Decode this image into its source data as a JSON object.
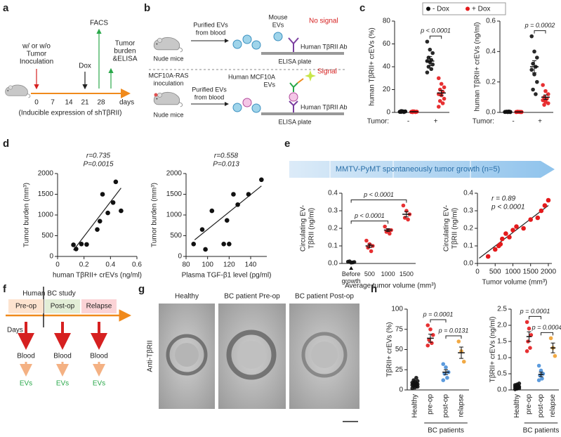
{
  "panel_labels": [
    "a",
    "b",
    "c",
    "d",
    "e",
    "f",
    "g",
    "h"
  ],
  "diagram_a": {
    "inoculation": [
      "w/ or w/o",
      "Tumor",
      "Inoculation"
    ],
    "facs": "FACS",
    "tumor_burden": [
      "Tumor",
      "burden",
      "&ELISA"
    ],
    "dox": "Dox",
    "days": [
      "0",
      "7",
      "14",
      "21",
      "28"
    ],
    "days_unit": "days",
    "caption": "(Inducible expression of shTβRII)"
  },
  "diagram_b": {
    "top": {
      "mouse_evs": [
        "Mouse",
        "EVs"
      ],
      "result": "No signal",
      "purified": [
        "Purified EVs",
        "from blood"
      ],
      "antibody": "Human TβRII Ab",
      "mice": "Nude mice",
      "plate": "ELISA plate"
    },
    "bottom": {
      "inoculation": [
        "MCF10A-RAS",
        "inoculation"
      ],
      "result": "Signal",
      "human_evs": [
        "Human MCF10A",
        "EVs"
      ],
      "purified": [
        "Purified EVs",
        "from blood"
      ],
      "antibody": "Human TβRII Ab",
      "mice": "Nude mice",
      "plate": "ELISA plate"
    }
  },
  "panel_e": {
    "banner": "MMTV-PyMT spontaneously tumor growth (n=5)"
  },
  "diagram_f": {
    "title": "Human BC study",
    "phases": [
      "Pre-op",
      "Post-op",
      "Relapse"
    ],
    "days": "Days",
    "sample": [
      "Blood",
      "Blood",
      "Blood"
    ],
    "product": [
      "EVs",
      "EVs",
      "EVs"
    ]
  },
  "images_g": {
    "stain": "Anti-TβRII",
    "labels": [
      "Healthy",
      "BC patient Pre-op",
      "BC patient Post-op"
    ]
  },
  "chart_data": [
    {
      "type": "strip",
      "ylabel": [
        "human TβRII+ crEVs (%)"
      ],
      "category_title": "Tumor:",
      "categories": [
        "-",
        "+"
      ],
      "ylim": [
        0,
        80
      ],
      "yticks": [
        0,
        20,
        40,
        60,
        80
      ],
      "series": [
        {
          "name": "- Dox",
          "color": "#111111",
          "values": [
            [
              0.5,
              1,
              0.8,
              1.2,
              0.3,
              0.6,
              1,
              0.9,
              0.4,
              0.7
            ],
            [
              62,
              55,
              52,
              48,
              46,
              45,
              44,
              42,
              40,
              38,
              35
            ]
          ],
          "means": [
            0.7,
            45
          ],
          "errors": [
            0.1,
            4
          ]
        },
        {
          "name": "+ Dox",
          "color": "#e41a1c",
          "values": [
            [
              0.4,
              0.8,
              0.6,
              1,
              0.3,
              0.5,
              0.9,
              0.7,
              0.2,
              0.6
            ],
            [
              30,
              25,
              22,
              20,
              18,
              16,
              15,
              12,
              10,
              8,
              5
            ]
          ],
          "means": [
            0.6,
            17
          ],
          "errors": [
            0.1,
            2.3
          ]
        }
      ],
      "brackets": [
        {
          "category": "+",
          "label": "p < 0.0001"
        }
      ]
    },
    {
      "type": "strip",
      "ylabel": [
        "human TβRII+ crEVs (ng/ml)"
      ],
      "category_title": "Tumor:",
      "categories": [
        "-",
        "+"
      ],
      "ylim": [
        0,
        0.6
      ],
      "yticks": [
        {
          "value": 0,
          "label": "0.0"
        },
        0.2,
        0.4,
        0.6
      ],
      "series": [
        {
          "color": "#111111",
          "values": [
            [
              0.003,
              0.005,
              0.002,
              0.004,
              0.006,
              0.003,
              0.002,
              0.004,
              0.005,
              0.003
            ],
            [
              0.5,
              0.4,
              0.36,
              0.32,
              0.3,
              0.28,
              0.25,
              0.2,
              0.15,
              0.12
            ]
          ],
          "means": [
            0.004,
            0.3
          ],
          "errors": [
            0.001,
            0.04
          ]
        },
        {
          "color": "#e41a1c",
          "values": [
            [
              0.002,
              0.004,
              0.003,
              0.005,
              0.002,
              0.003,
              0.004,
              0.002,
              0.003,
              0.004
            ],
            [
              0.18,
              0.14,
              0.12,
              0.1,
              0.09,
              0.08,
              0.07,
              0.06,
              0.05
            ]
          ],
          "means": [
            0.003,
            0.1
          ],
          "errors": [
            0.001,
            0.015
          ]
        }
      ],
      "brackets": [
        {
          "category": "+",
          "label": "p = 0.0002"
        }
      ]
    },
    {
      "type": "scatter",
      "xlabel": "human TβRII+ crEVs (ng/ml)",
      "ylabel": [
        "Tumor burden (mm³)"
      ],
      "xlim": [
        0,
        0.6
      ],
      "xticks": [
        0,
        0.2,
        0.4,
        0.6
      ],
      "ylim": [
        0,
        2000
      ],
      "yticks": [
        0,
        500,
        1000,
        1500,
        2000
      ],
      "x": [
        0.12,
        0.14,
        0.18,
        0.22,
        0.3,
        0.32,
        0.34,
        0.38,
        0.42,
        0.44,
        0.48
      ],
      "values": [
        280,
        180,
        300,
        290,
        650,
        850,
        1500,
        1050,
        1300,
        1800,
        1100
      ],
      "color": "#111111",
      "fit": {
        "x": [
          0.12,
          0.48
        ],
        "y": [
          150,
          1650
        ]
      },
      "stats": [
        "r=0.735",
        "P=0.0015"
      ]
    },
    {
      "type": "scatter",
      "xlabel": "Plasma TGF-β1 level (pg/ml)",
      "ylabel": [
        "Tumor burden (mm³)"
      ],
      "xlim": [
        80,
        155
      ],
      "xticks": [
        80,
        100,
        120,
        140
      ],
      "ylim": [
        0,
        2000
      ],
      "yticks": [
        0,
        500,
        1000,
        1500,
        2000
      ],
      "x": [
        87,
        95,
        98,
        104,
        115,
        118,
        120,
        124,
        128,
        138,
        150
      ],
      "values": [
        300,
        650,
        170,
        1100,
        300,
        870,
        300,
        1500,
        1250,
        1500,
        1850
      ],
      "color": "#111111",
      "fit": {
        "x": [
          88,
          150
        ],
        "y": [
          400,
          1700
        ]
      },
      "stats": [
        "r=0.558",
        "P=0.013"
      ]
    },
    {
      "type": "strip",
      "ylabel": [
        "Circulating EV-",
        "TβRII (ng/ml)"
      ],
      "categories": [
        "Before growth",
        "500",
        "1000",
        "1500"
      ],
      "xlabel": "Average tumor volume (mm³)",
      "ylim": [
        0,
        0.4
      ],
      "yticks": [
        {
          "value": 0,
          "label": "0.0"
        },
        0.1,
        0.2,
        0.3,
        0.4
      ],
      "series": [
        {
          "color": [
            "#111111",
            "#e41a1c",
            "#e41a1c",
            "#e41a1c"
          ],
          "values": [
            [
              0.01,
              0.005,
              0.008,
              0.012,
              0.006
            ],
            [
              0.13,
              0.11,
              0.1,
              0.09,
              0.07
            ],
            [
              0.21,
              0.19,
              0.19,
              0.18,
              0.17
            ],
            [
              0.33,
              0.3,
              0.28,
              0.26,
              0.25
            ]
          ],
          "means": [
            0.008,
            0.1,
            0.19,
            0.28
          ],
          "errors": [
            0.002,
            0.01,
            0.008,
            0.015
          ]
        }
      ],
      "brackets": [
        {
          "between": [
            "Before growth",
            "1000"
          ],
          "label": "p < 0.0001"
        },
        {
          "between": [
            "Before growth",
            "1500"
          ],
          "label": "p < 0.0001"
        }
      ]
    },
    {
      "type": "scatter",
      "xlabel": "Tumor volume (mm³)",
      "ylabel": [
        "Circulating EV-",
        "TβRII (ng/ml)"
      ],
      "xlim": [
        0,
        2100
      ],
      "xticks": [
        0,
        500,
        1000,
        1500,
        2000
      ],
      "ylim": [
        0,
        0.4
      ],
      "yticks": [
        {
          "value": 0,
          "label": "0.0"
        },
        0.1,
        0.2,
        0.3,
        0.4
      ],
      "x": [
        300,
        500,
        600,
        650,
        700,
        800,
        900,
        1000,
        1100,
        1300,
        1500,
        1700,
        1800,
        1900,
        2000
      ],
      "values": [
        0.04,
        0.08,
        0.1,
        0.11,
        0.14,
        0.17,
        0.15,
        0.19,
        0.21,
        0.2,
        0.25,
        0.26,
        0.3,
        0.33,
        0.36
      ],
      "color": "#e41a1c",
      "fit": {
        "x": [
          50,
          2000
        ],
        "y": [
          0.03,
          0.33
        ]
      },
      "stats": [
        "r = 0.89",
        "p < 0.0001"
      ]
    },
    {
      "type": "strip",
      "ylabel": [
        "TβRII+ crEVs (%)"
      ],
      "categories": [
        "Healthy",
        "pre-op",
        "post-op",
        "relapse"
      ],
      "group_label": "BC patients",
      "group_categories": [
        "pre-op",
        "post-op",
        "relapse"
      ],
      "ylim": [
        0,
        100
      ],
      "yticks": [
        0,
        25,
        50,
        75,
        100
      ],
      "series": [
        {
          "color": [
            "#111111",
            "#e41a1c",
            "#4a90d9",
            "#f0a030"
          ],
          "values": [
            [
              2,
              3,
              4,
              5,
              5,
              6,
              6,
              7,
              8,
              8,
              9,
              10,
              11,
              12,
              15
            ],
            [
              80,
              75,
              68,
              62,
              58,
              55
            ],
            [
              32,
              28,
              22,
              20,
              15,
              12
            ],
            [
              60,
              48,
              35
            ]
          ],
          "means": [
            7,
            64,
            22,
            46
          ],
          "errors": [
            1,
            5,
            3,
            7
          ]
        }
      ],
      "brackets": [
        {
          "between": [
            "pre-op",
            "post-op"
          ],
          "label": "p = 0.0001"
        },
        {
          "between": [
            "post-op",
            "relapse"
          ],
          "label": "p = 0.0131"
        }
      ]
    },
    {
      "type": "strip",
      "ylabel": [
        "TβRII+ crEVs (ng/ml)"
      ],
      "categories": [
        "Healthy",
        "pre-op",
        "post-op",
        "relapse"
      ],
      "group_label": "BC patients",
      "group_categories": [
        "pre-op",
        "post-op",
        "relapse"
      ],
      "ylim": [
        0,
        2.5
      ],
      "yticks": [
        {
          "value": 0,
          "label": "0.0"
        },
        0.5,
        {
          "value": 1,
          "label": "1.0"
        },
        1.5,
        {
          "value": 2,
          "label": "2.0"
        },
        2.5
      ],
      "series": [
        {
          "color": [
            "#111111",
            "#e41a1c",
            "#4a90d9",
            "#f0a030"
          ],
          "values": [
            [
              0.02,
              0.04,
              0.05,
              0.06,
              0.08,
              0.09,
              0.1,
              0.1,
              0.12,
              0.13,
              0.15,
              0.17,
              0.2
            ],
            [
              2.1,
              1.9,
              1.7,
              1.5,
              1.3,
              1.2
            ],
            [
              0.75,
              0.6,
              0.5,
              0.45,
              0.35,
              0.3
            ],
            [
              1.6,
              1.3,
              1.05
            ]
          ],
          "means": [
            0.1,
            1.65,
            0.48,
            1.3
          ],
          "errors": [
            0.02,
            0.15,
            0.07,
            0.15
          ]
        }
      ],
      "brackets": [
        {
          "between": [
            "pre-op",
            "post-op"
          ],
          "label": "p = 0.0001"
        },
        {
          "between": [
            "post-op",
            "relapse"
          ],
          "label": "p = 0.0004"
        }
      ]
    }
  ]
}
